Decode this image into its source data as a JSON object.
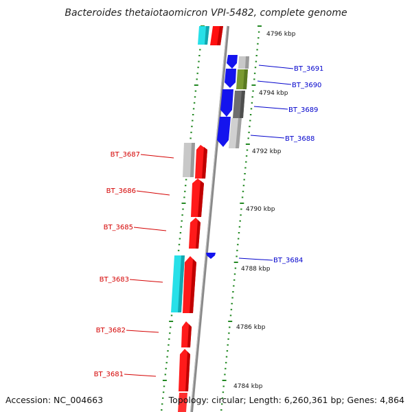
{
  "title": "Bacteroides thetaiotaomicron VPI-5482, complete genome",
  "footer": {
    "accession": "Accession: NC_004663",
    "summary": "Topology: circular; Length: 6,260,361 bp; Genes: 4,864"
  },
  "colors": {
    "forward_label": "#d40000",
    "reverse_label": "#0000cc",
    "backbone": "#888888",
    "tick": "#228822"
  },
  "kbp_labels": [
    "4796 kbp",
    "4794 kbp",
    "4792 kbp",
    "4790 kbp",
    "4788 kbp",
    "4786 kbp",
    "4784 kbp"
  ],
  "genes_forward": [
    "BT_3687",
    "BT_3686",
    "BT_3685",
    "BT_3683",
    "BT_3682",
    "BT_3681"
  ],
  "genes_reverse": [
    "BT_3691",
    "BT_3690",
    "BT_3689",
    "BT_3688",
    "BT_3684"
  ]
}
